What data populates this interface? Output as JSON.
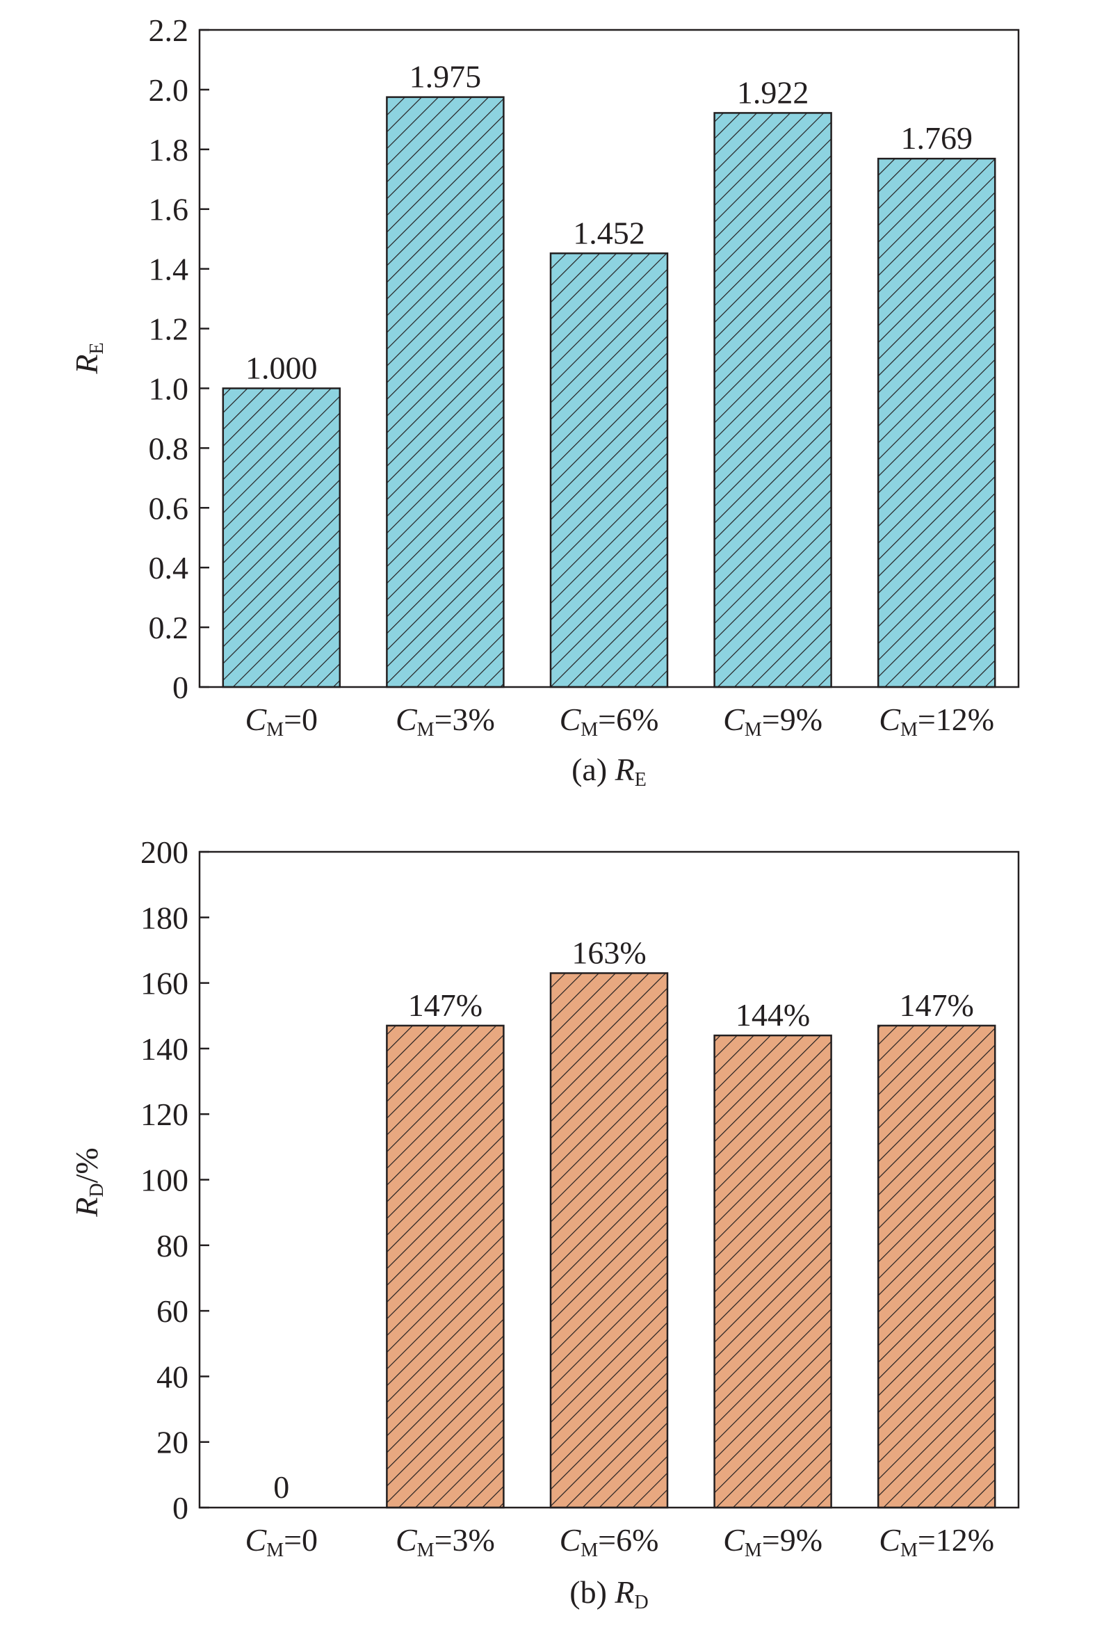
{
  "chart_data": [
    {
      "type": "bar",
      "categories": [
        {
          "sym": "C",
          "sub": "M",
          "rest": "=0"
        },
        {
          "sym": "C",
          "sub": "M",
          "rest": "=3%"
        },
        {
          "sym": "C",
          "sub": "M",
          "rest": "=6%"
        },
        {
          "sym": "C",
          "sub": "M",
          "rest": "=9%"
        },
        {
          "sym": "C",
          "sub": "M",
          "rest": "=12%"
        }
      ],
      "values": [
        1.0,
        1.975,
        1.452,
        1.922,
        1.769
      ],
      "data_labels": [
        "1.000",
        "1.975",
        "1.452",
        "1.922",
        "1.769"
      ],
      "ylim": [
        0,
        2.2
      ],
      "yticks": [
        0,
        0.2,
        0.4,
        0.6,
        0.8,
        1.0,
        1.2,
        1.4,
        1.6,
        1.8,
        2.0,
        2.2
      ],
      "ytick_labels": [
        "0",
        "0.2",
        "0.4",
        "0.6",
        "0.8",
        "1.0",
        "1.2",
        "1.4",
        "1.6",
        "1.8",
        "2.0",
        "2.2"
      ],
      "ylabel": {
        "sym": "R",
        "sub": "E",
        "rest": ""
      },
      "caption": {
        "prefix": "(a) ",
        "sym": "R",
        "sub": "E"
      },
      "color": "#8dd3e0",
      "grid": false,
      "hatch": "diagonal"
    },
    {
      "type": "bar",
      "categories": [
        {
          "sym": "C",
          "sub": "M",
          "rest": "=0"
        },
        {
          "sym": "C",
          "sub": "M",
          "rest": "=3%"
        },
        {
          "sym": "C",
          "sub": "M",
          "rest": "=6%"
        },
        {
          "sym": "C",
          "sub": "M",
          "rest": "=9%"
        },
        {
          "sym": "C",
          "sub": "M",
          "rest": "=12%"
        }
      ],
      "values": [
        0,
        147,
        163,
        144,
        147
      ],
      "data_labels": [
        "0",
        "147%",
        "163%",
        "144%",
        "147%"
      ],
      "ylim": [
        0,
        200
      ],
      "yticks": [
        0,
        20,
        40,
        60,
        80,
        100,
        120,
        140,
        160,
        180,
        200
      ],
      "ytick_labels": [
        "0",
        "20",
        "40",
        "60",
        "80",
        "100",
        "120",
        "140",
        "160",
        "180",
        "200"
      ],
      "ylabel": {
        "sym": "R",
        "sub": "D",
        "rest": "/%"
      },
      "caption": {
        "prefix": "(b) ",
        "sym": "R",
        "sub": "D"
      },
      "color": "#e8a880",
      "grid": false,
      "hatch": "diagonal"
    }
  ]
}
